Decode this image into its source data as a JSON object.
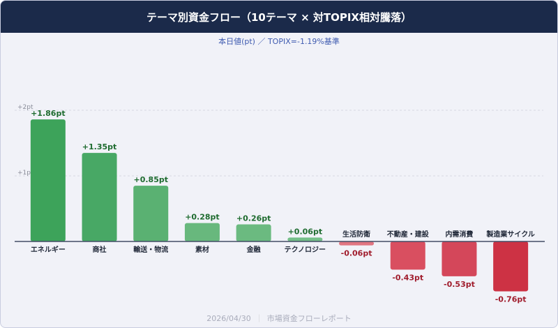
{
  "header": {
    "title": "テーマ別資金フロー（10テーマ × 対TOPIX相対騰落）"
  },
  "subtitle": "本日値(pt) ／ TOPIX=-1.19%基準",
  "footer": {
    "date": "2026/04/30",
    "separator": "｜",
    "report": "市場資金フローレポート"
  },
  "chart_data": {
    "type": "bar",
    "title": "テーマ別資金フロー（10テーマ × 対TOPIX相対騰落）",
    "subtitle": "本日値(pt) ／ TOPIX=-1.19%基準",
    "categories": [
      "エネルギー",
      "商社",
      "輸送・物流",
      "素材",
      "金融",
      "テクノロジー",
      "生活防衛",
      "不動産・建設",
      "内需消費",
      "製造業サイクル"
    ],
    "values": [
      1.86,
      1.35,
      0.85,
      0.28,
      0.26,
      0.06,
      -0.06,
      -0.43,
      -0.53,
      -0.76
    ],
    "data_labels": [
      "+1.86pt",
      "+1.35pt",
      "+0.85pt",
      "+0.28pt",
      "+0.26pt",
      "+0.06pt",
      "-0.06pt",
      "-0.43pt",
      "-0.53pt",
      "-0.76pt"
    ],
    "y_ticks": [
      {
        "value": 1,
        "label": "+1pt"
      },
      {
        "value": 2,
        "label": "+2pt"
      }
    ],
    "ylim": [
      -0.9,
      2.1
    ],
    "grid": true,
    "colors": [
      "#3da35a",
      "#48a865",
      "#5ab172",
      "#68b87d",
      "#6bba80",
      "#74bf88",
      "#e07581",
      "#d94f60",
      "#d4475a",
      "#cd3244"
    ],
    "positive_label_color": "#1e6b2f",
    "negative_label_color": "#a01c2c"
  }
}
